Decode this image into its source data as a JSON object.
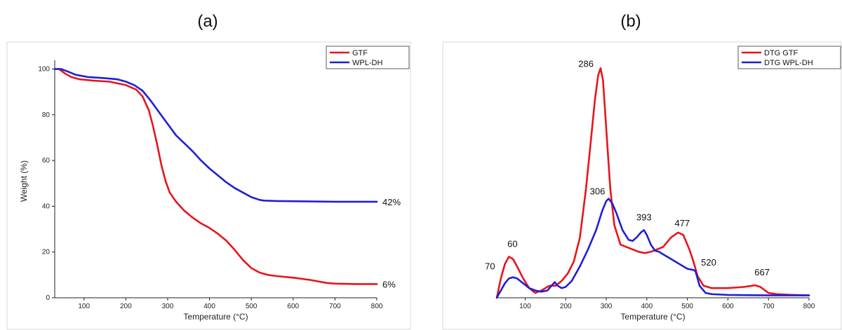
{
  "figure": {
    "panels": [
      {
        "label": "(a)"
      },
      {
        "label": "(b)"
      }
    ]
  },
  "chart_data": [
    {
      "type": "line",
      "xlabel": "Temperature (°C)",
      "ylabel": "Weight (%)",
      "xlim": [
        30,
        800
      ],
      "ylim": [
        0,
        102
      ],
      "xticks": [
        100,
        200,
        300,
        400,
        500,
        600,
        700,
        800
      ],
      "yticks": [
        0,
        20,
        40,
        60,
        80,
        100
      ],
      "grid": false,
      "legend_position": "top-right",
      "series": [
        {
          "name": "GTF",
          "color": "#e8141b",
          "points": [
            [
              30,
              100
            ],
            [
              40,
              100
            ],
            [
              55,
              98
            ],
            [
              70,
              96.5
            ],
            [
              90,
              95.5
            ],
            [
              120,
              95
            ],
            [
              160,
              94.5
            ],
            [
              200,
              93
            ],
            [
              225,
              91
            ],
            [
              240,
              88
            ],
            [
              255,
              82
            ],
            [
              265,
              75
            ],
            [
              275,
              67
            ],
            [
              285,
              58
            ],
            [
              295,
              51
            ],
            [
              305,
              46
            ],
            [
              320,
              42
            ],
            [
              340,
              38
            ],
            [
              360,
              35
            ],
            [
              380,
              32.5
            ],
            [
              400,
              30.5
            ],
            [
              420,
              28
            ],
            [
              440,
              25
            ],
            [
              460,
              21
            ],
            [
              480,
              16.5
            ],
            [
              500,
              13
            ],
            [
              520,
              11
            ],
            [
              540,
              10
            ],
            [
              560,
              9.5
            ],
            [
              600,
              8.8
            ],
            [
              640,
              7.8
            ],
            [
              680,
              6.5
            ],
            [
              700,
              6.2
            ],
            [
              750,
              6
            ],
            [
              800,
              6
            ]
          ]
        },
        {
          "name": "WPL-DH",
          "color": "#1f1fd6",
          "points": [
            [
              30,
              100
            ],
            [
              45,
              100
            ],
            [
              60,
              99
            ],
            [
              80,
              97.5
            ],
            [
              110,
              96.5
            ],
            [
              150,
              96
            ],
            [
              180,
              95.5
            ],
            [
              200,
              94.5
            ],
            [
              220,
              93
            ],
            [
              240,
              90.5
            ],
            [
              260,
              86
            ],
            [
              280,
              81
            ],
            [
              300,
              76
            ],
            [
              320,
              71
            ],
            [
              340,
              67.5
            ],
            [
              360,
              64
            ],
            [
              380,
              60
            ],
            [
              400,
              56.5
            ],
            [
              420,
              53.5
            ],
            [
              440,
              50.5
            ],
            [
              460,
              48
            ],
            [
              480,
              46
            ],
            [
              500,
              44
            ],
            [
              520,
              42.8
            ],
            [
              530,
              42.5
            ],
            [
              560,
              42.3
            ],
            [
              600,
              42.2
            ],
            [
              700,
              42
            ],
            [
              800,
              42
            ]
          ]
        }
      ],
      "annotations": [
        {
          "text": "42%",
          "x": 800,
          "y": 42
        },
        {
          "text": "6%",
          "x": 800,
          "y": 6
        }
      ]
    },
    {
      "type": "line",
      "xlabel": "Temperature (°C)",
      "ylabel": "",
      "xlim": [
        30,
        800
      ],
      "ylim": [
        0,
        100
      ],
      "xticks": [
        100,
        200,
        300,
        400,
        500,
        600,
        700,
        800
      ],
      "yticks": [],
      "grid": false,
      "legend_position": "top-right",
      "series": [
        {
          "name": "DTG GTF",
          "color": "#e8141b",
          "points": [
            [
              30,
              0
            ],
            [
              40,
              8
            ],
            [
              50,
              14
            ],
            [
              60,
              17
            ],
            [
              70,
              16
            ],
            [
              80,
              13
            ],
            [
              95,
              8
            ],
            [
              110,
              4
            ],
            [
              125,
              2
            ],
            [
              140,
              3
            ],
            [
              160,
              5
            ],
            [
              175,
              5
            ],
            [
              190,
              7
            ],
            [
              205,
              10
            ],
            [
              220,
              15
            ],
            [
              235,
              25
            ],
            [
              250,
              45
            ],
            [
              262,
              65
            ],
            [
              272,
              82
            ],
            [
              280,
              92
            ],
            [
              286,
              95
            ],
            [
              292,
              90
            ],
            [
              300,
              70
            ],
            [
              310,
              45
            ],
            [
              320,
              30
            ],
            [
              335,
              22
            ],
            [
              350,
              21
            ],
            [
              365,
              20
            ],
            [
              380,
              19
            ],
            [
              395,
              18.5
            ],
            [
              410,
              19
            ],
            [
              425,
              20
            ],
            [
              440,
              21
            ],
            [
              460,
              25
            ],
            [
              477,
              27
            ],
            [
              490,
              26
            ],
            [
              505,
              20
            ],
            [
              515,
              15
            ],
            [
              525,
              9
            ],
            [
              540,
              5
            ],
            [
              560,
              4
            ],
            [
              600,
              4
            ],
            [
              640,
              4.5
            ],
            [
              660,
              5
            ],
            [
              667,
              5.2
            ],
            [
              680,
              4.5
            ],
            [
              700,
              2
            ],
            [
              720,
              1.5
            ],
            [
              760,
              1.2
            ],
            [
              800,
              1
            ]
          ]
        },
        {
          "name": "DTG WPL-DH",
          "color": "#1f1fd6",
          "points": [
            [
              30,
              0
            ],
            [
              40,
              3
            ],
            [
              50,
              6
            ],
            [
              60,
              8
            ],
            [
              70,
              8.5
            ],
            [
              80,
              8
            ],
            [
              95,
              6
            ],
            [
              110,
              4
            ],
            [
              125,
              3
            ],
            [
              140,
              2.5
            ],
            [
              155,
              3
            ],
            [
              165,
              5
            ],
            [
              173,
              6.5
            ],
            [
              180,
              5
            ],
            [
              190,
              4
            ],
            [
              200,
              4.5
            ],
            [
              215,
              7
            ],
            [
              235,
              13
            ],
            [
              255,
              20
            ],
            [
              275,
              28
            ],
            [
              290,
              36
            ],
            [
              300,
              40
            ],
            [
              306,
              41
            ],
            [
              315,
              39
            ],
            [
              325,
              35
            ],
            [
              340,
              28
            ],
            [
              355,
              24
            ],
            [
              365,
              23.5
            ],
            [
              375,
              25
            ],
            [
              385,
              27
            ],
            [
              393,
              28
            ],
            [
              400,
              26
            ],
            [
              410,
              22
            ],
            [
              420,
              19.5
            ],
            [
              430,
              19
            ],
            [
              445,
              17.5
            ],
            [
              460,
              16
            ],
            [
              480,
              14
            ],
            [
              500,
              12
            ],
            [
              515,
              11.5
            ],
            [
              520,
              11
            ],
            [
              530,
              5
            ],
            [
              545,
              2
            ],
            [
              560,
              1.5
            ],
            [
              600,
              1.2
            ],
            [
              700,
              1
            ],
            [
              800,
              1
            ]
          ]
        }
      ],
      "annotations": [
        {
          "text": "286",
          "x": 286,
          "y": 95
        },
        {
          "text": "306",
          "x": 306,
          "y": 41
        },
        {
          "text": "393",
          "x": 393,
          "y": 28
        },
        {
          "text": "477",
          "x": 477,
          "y": 27
        },
        {
          "text": "520",
          "x": 520,
          "y": 11
        },
        {
          "text": "667",
          "x": 667,
          "y": 5.2
        },
        {
          "text": "60",
          "x": 60,
          "y": 17
        },
        {
          "text": "70",
          "x": 70,
          "y": 8.5
        }
      ]
    }
  ]
}
